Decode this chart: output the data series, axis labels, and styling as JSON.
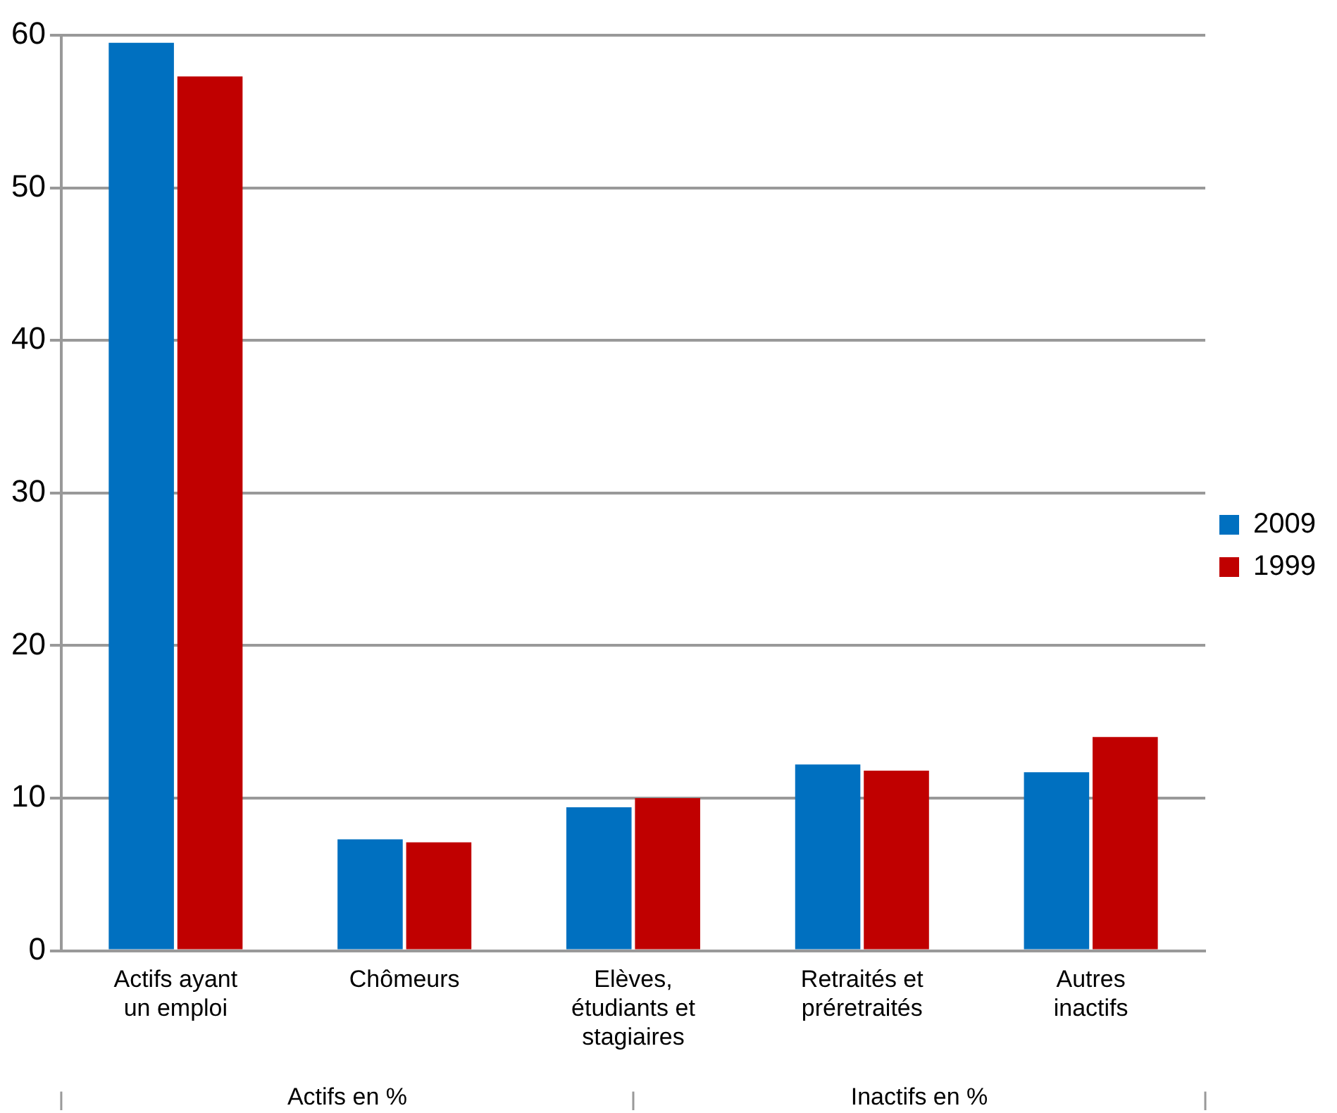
{
  "chart_data": {
    "type": "bar",
    "categories": [
      "Actifs ayant un emploi",
      "Chômeurs",
      "Elèves, étudiants et stagiaires",
      "Retraités et préretraités",
      "Autres inactifs"
    ],
    "series": [
      {
        "name": "2009",
        "color": "#0070c0",
        "values": [
          59.5,
          7.3,
          9.4,
          12.2,
          11.7
        ]
      },
      {
        "name": "1999",
        "color": "#c00000",
        "values": [
          57.3,
          7.1,
          10.0,
          11.8,
          14.0
        ]
      }
    ],
    "ylim": [
      0,
      60
    ],
    "yticks": [
      0,
      10,
      20,
      30,
      40,
      50,
      60
    ],
    "grid": "y",
    "legend": "right",
    "annotations": [
      "Actifs en %",
      "Inactifs en %"
    ]
  }
}
